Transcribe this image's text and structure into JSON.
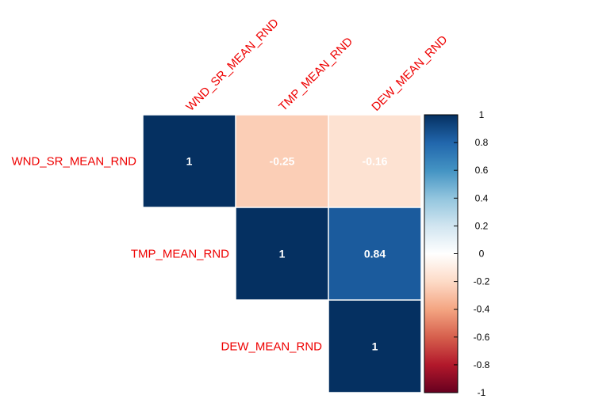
{
  "chart_data": {
    "type": "heatmap",
    "variables": [
      "WND_SR_MEAN_RND",
      "TMP_MEAN_RND",
      "DEW_MEAN_RND"
    ],
    "matrix": [
      [
        1,
        -0.25,
        -0.16
      ],
      [
        null,
        1,
        0.84
      ],
      [
        null,
        null,
        1
      ]
    ],
    "cell_labels": [
      [
        "1",
        "-0.25",
        "-0.16"
      ],
      [
        "",
        "1",
        "0.84"
      ],
      [
        "",
        "",
        "1"
      ]
    ],
    "triangle": "upper",
    "legend": {
      "placement": "right",
      "range": [
        -1,
        1
      ],
      "ticks": [
        1,
        0.8,
        0.6,
        0.4,
        0.2,
        0,
        -0.2,
        -0.4,
        -0.6,
        -0.8,
        -1
      ],
      "tick_labels": [
        "1",
        "0.8",
        "0.6",
        "0.4",
        "0.2",
        "0",
        "-0.2",
        "-0.4",
        "-0.6",
        "-0.8",
        "-1"
      ]
    },
    "colors": {
      "label": "#ee0000",
      "cell_text": "#ffffff",
      "palette": [
        "#67001F",
        "#B2182B",
        "#D6604D",
        "#F4A582",
        "#FDDBC7",
        "#FFFFFF",
        "#D1E5F0",
        "#92C5DE",
        "#4393C3",
        "#2166AC",
        "#053061"
      ]
    }
  }
}
